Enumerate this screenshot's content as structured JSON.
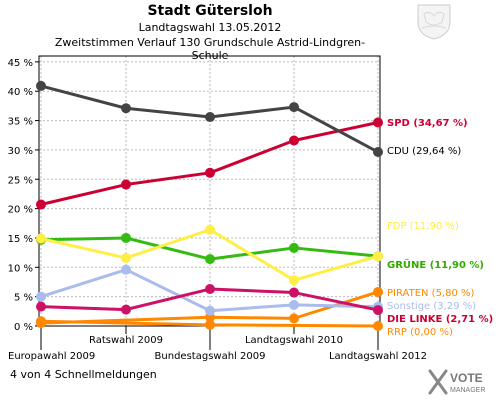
{
  "header": {
    "title": "Stadt Gütersloh",
    "subtitle": "Landtagswahl 13.05.2012",
    "subtitle2": "Zweitstimmen Verlauf 130 Grundschule Astrid-Lindgren-Schule"
  },
  "footer": {
    "text": "4 von 4 Schnellmeldungen"
  },
  "logo": {
    "vote": "VOTE",
    "manager": "MANAGER"
  },
  "chart_data": {
    "type": "line",
    "title": "Stadt Gütersloh",
    "categories": [
      "Europawahl 2009",
      "Ratswahl 2009",
      "Bundestagswahl 2009",
      "Landtagswahl 2010",
      "Landtagswahl 2012"
    ],
    "y_ticks": [
      "0 %",
      "5 %",
      "10 %",
      "15 %",
      "20 %",
      "25 %",
      "30 %",
      "35 %",
      "40 %",
      "45 %"
    ],
    "ylim": [
      0,
      46
    ],
    "grid": true,
    "series": [
      {
        "name": "CDU",
        "label": "CDU (29,64 %)",
        "color": "#444444",
        "label_color": "#000000",
        "values": [
          40.9,
          37.1,
          35.6,
          37.3,
          29.64
        ]
      },
      {
        "name": "SPD",
        "label": "SPD (34,67 %)",
        "color": "#cc0033",
        "label_color": "#cc0033",
        "values": [
          20.7,
          24.1,
          26.1,
          31.6,
          34.67
        ]
      },
      {
        "name": "FDP",
        "label": "FDP (11,90 %)",
        "color": "#ffee44",
        "label_color": "#ffee44",
        "values": [
          14.9,
          11.6,
          16.4,
          7.8,
          11.9
        ]
      },
      {
        "name": "GRÜNE",
        "label": "GRÜNE (11,90 %)",
        "color": "#33bb11",
        "label_color": "#33aa00",
        "values": [
          14.7,
          15.0,
          11.4,
          13.3,
          11.9
        ]
      },
      {
        "name": "PIRATEN",
        "label": "PIRATEN (5,80 %)",
        "color": "#ff8800",
        "label_color": "#ff8800",
        "values": [
          0.5,
          null,
          1.5,
          1.3,
          5.8
        ]
      },
      {
        "name": "Sonstige",
        "label": "Sonstige (3,29 %)",
        "color": "#aabbee",
        "label_color": "#aabbee",
        "values": [
          5.0,
          9.6,
          2.6,
          3.6,
          3.29
        ]
      },
      {
        "name": "DIE LINKE",
        "label": "DIE LINKE (2,71 %)",
        "color": "#cc1166",
        "label_color": "#cc0033",
        "values": [
          3.3,
          2.8,
          6.3,
          5.7,
          2.71
        ]
      },
      {
        "name": "RRP",
        "label": "RRP (0,00 %)",
        "color": "#ff8800",
        "label_color": "#ff8800",
        "values": [
          0.8,
          null,
          0.2,
          null,
          0.0
        ]
      }
    ]
  }
}
